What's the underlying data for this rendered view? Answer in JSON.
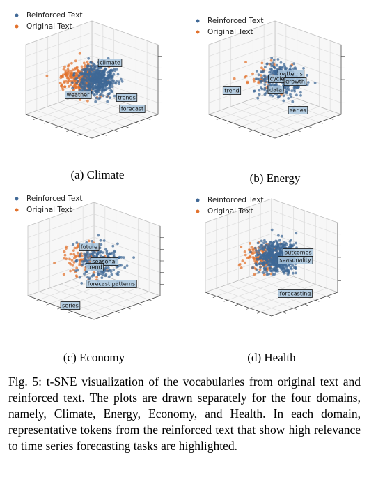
{
  "figure": {
    "panels": [
      {
        "legend": [
          "Reinforced Text",
          "Original Text"
        ],
        "tokens": [
          "climate",
          "weather",
          "trends",
          "forecast"
        ],
        "caption": "(a) Climate"
      },
      {
        "legend": [
          "Reinforced Text",
          "Original Text"
        ],
        "tokens": [
          "trend",
          "patterns",
          "cycle",
          "growth",
          "data",
          "series"
        ],
        "caption": "(b) Energy"
      },
      {
        "legend": [
          "Reinforced Text",
          "Original Text"
        ],
        "tokens": [
          "future",
          "seasonal",
          "trend",
          "forecast patterns",
          "series"
        ],
        "caption": "(c) Economy"
      },
      {
        "legend": [
          "Reinforced Text",
          "Original Text"
        ],
        "tokens": [
          "outcomes",
          "seasonality",
          "forecasting"
        ],
        "caption": "(d) Health"
      }
    ]
  },
  "caption": "Fig. 5: t-SNE visualization of the vocabularies from original text and reinforced text. The plots are drawn separately for the four domains, namely, Climate, Energy, Economy, and Health. In each domain, representative tokens from the reinforced text that show high relevance to time series forecasting tasks are highlighted."
}
